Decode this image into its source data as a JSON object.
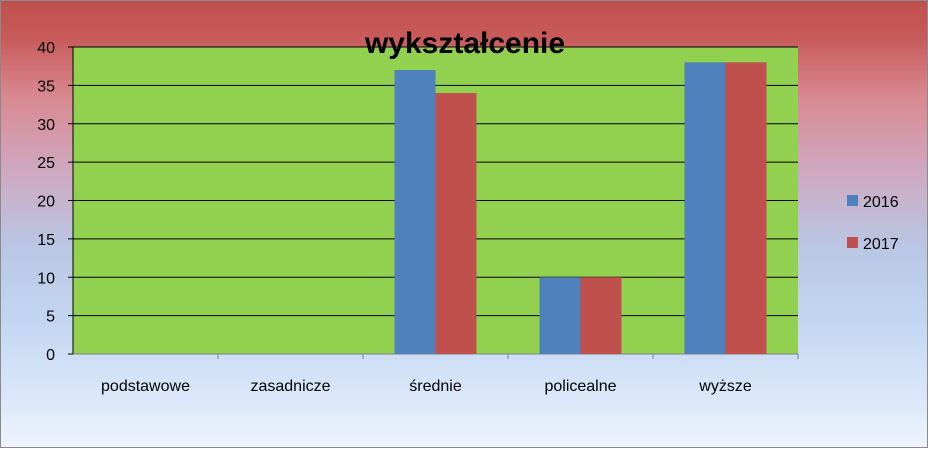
{
  "chart_data": {
    "type": "bar",
    "title": "wykształcenie",
    "xlabel": "",
    "ylabel": "",
    "categories": [
      "podstawowe",
      "zasadnicze",
      "średnie",
      "policealne",
      "wyższe"
    ],
    "series": [
      {
        "name": "2016",
        "color": "#4f81bd",
        "values": [
          0,
          0,
          37,
          10,
          38
        ]
      },
      {
        "name": "2017",
        "color": "#c0504d",
        "values": [
          0,
          0,
          34,
          10,
          38
        ]
      }
    ],
    "ylim": [
      0,
      40
    ],
    "yticks": [
      "0",
      "5",
      "10",
      "15",
      "20",
      "25",
      "30",
      "35",
      "40"
    ],
    "grid": true,
    "plot_background": "#92d050",
    "legend_position": "right"
  }
}
